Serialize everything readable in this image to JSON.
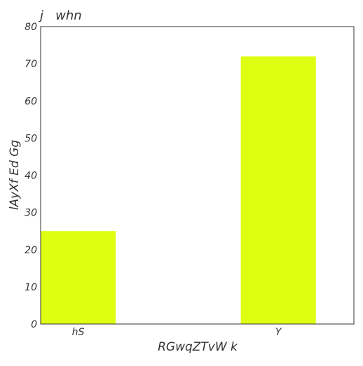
{
  "chart_data": {
    "type": "bar",
    "title": "j   whn",
    "xlabel": "RGwqZTvW k",
    "ylabel": "lAyXf Ed Gg",
    "categories": [
      "hS",
      "Y"
    ],
    "values": [
      25,
      72
    ],
    "ylim": [
      0,
      80
    ],
    "yticks": [
      0,
      10,
      20,
      30,
      40,
      50,
      60,
      70,
      80
    ],
    "grid": false,
    "bar_color": "#dfff12",
    "axis_color": "#333333"
  }
}
